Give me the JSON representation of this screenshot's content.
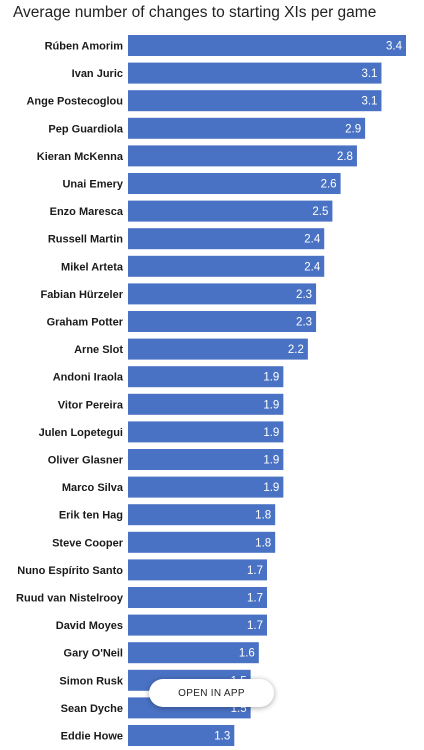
{
  "chart_data": {
    "type": "bar",
    "orientation": "horizontal",
    "title": "Average number of changes to starting XIs per game",
    "xlabel": "",
    "ylabel": "",
    "xlim": [
      0,
      3.4
    ],
    "grid": false,
    "bar_color": "#4a72c4",
    "categories": [
      "Rúben Amorim",
      "Ivan Juric",
      "Ange Postecoglou",
      "Pep Guardiola",
      "Kieran McKenna",
      "Unai Emery",
      "Enzo Maresca",
      "Russell Martin",
      "Mikel Arteta",
      "Fabian Hürzeler",
      "Graham Potter",
      "Arne Slot",
      "Andoni Iraola",
      "Vitor Pereira",
      "Julen Lopetegui",
      "Oliver Glasner",
      "Marco Silva",
      "Erik ten Hag",
      "Steve Cooper",
      "Nuno Espírito Santo",
      "Ruud van Nistelrooy",
      "David Moyes",
      "Gary O'Neil",
      "Simon Rusk",
      "Sean Dyche",
      "Eddie Howe"
    ],
    "values": [
      3.4,
      3.1,
      3.1,
      2.9,
      2.8,
      2.6,
      2.5,
      2.4,
      2.4,
      2.3,
      2.3,
      2.2,
      1.9,
      1.9,
      1.9,
      1.9,
      1.9,
      1.8,
      1.8,
      1.7,
      1.7,
      1.7,
      1.6,
      1.5,
      1.5,
      1.3
    ],
    "value_labels": [
      "3.4",
      "3.1",
      "3.1",
      "2.9",
      "2.8",
      "2.6",
      "2.5",
      "2.4",
      "2.4",
      "2.3",
      "2.3",
      "2.2",
      "1.9",
      "1.9",
      "1.9",
      "1.9",
      "1.9",
      "1.8",
      "1.8",
      "1.7",
      "1.7",
      "1.7",
      "1.6",
      "1.5",
      "1.5",
      "1.3"
    ]
  },
  "overlay": {
    "open_in_app_label": "OPEN IN APP"
  }
}
